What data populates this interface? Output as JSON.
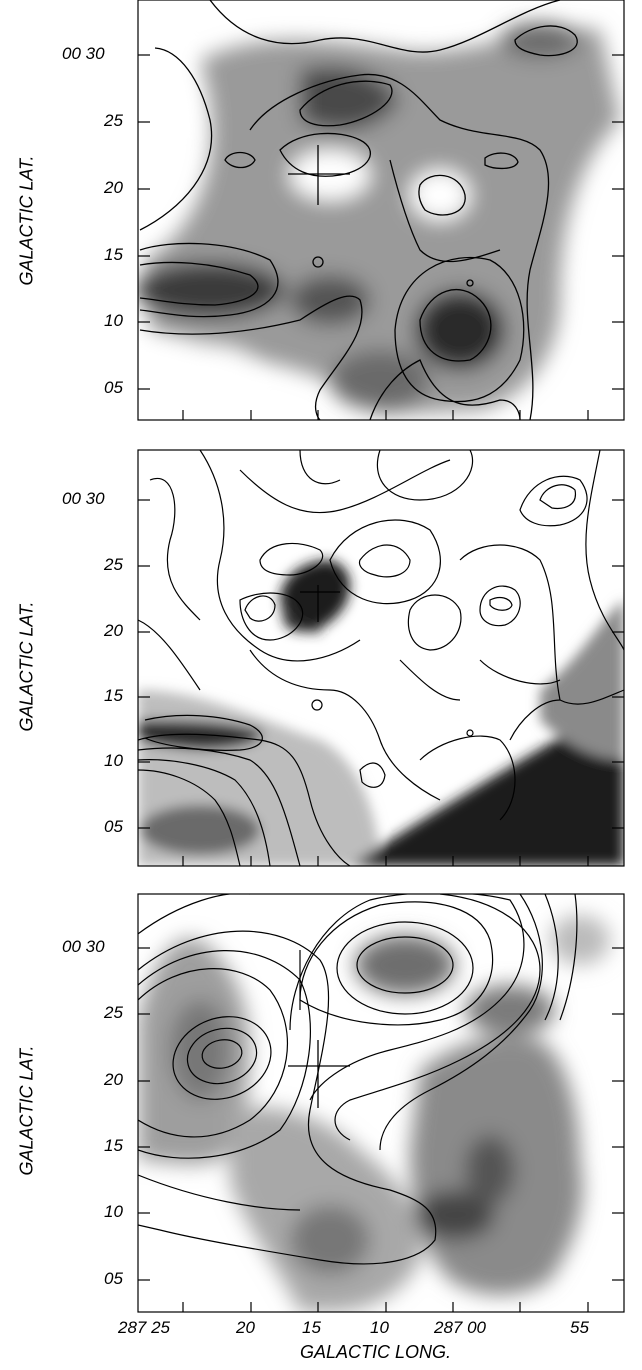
{
  "figure": {
    "panels": [
      {
        "id": "top",
        "y_axis_label": "GALACTIC LAT.",
        "y_tick_labels": [
          "00 30",
          "25",
          "20",
          "15",
          "10",
          "05"
        ]
      },
      {
        "id": "middle",
        "y_axis_label": "GALACTIC LAT.",
        "y_tick_labels": [
          "00 30",
          "25",
          "20",
          "15",
          "10",
          "05"
        ]
      },
      {
        "id": "bottom",
        "y_axis_label": "GALACTIC LAT.",
        "y_tick_labels": [
          "00 30",
          "25",
          "20",
          "15",
          "10",
          "05"
        ],
        "x_axis_label": "GALACTIC LONG.",
        "x_tick_labels": [
          "287 25",
          "20",
          "15",
          "10",
          "287 00",
          "55"
        ]
      }
    ]
  },
  "colors": {
    "frame": "#000000",
    "background": "#ffffff",
    "greyscale_dark": "#1a1a1a"
  }
}
